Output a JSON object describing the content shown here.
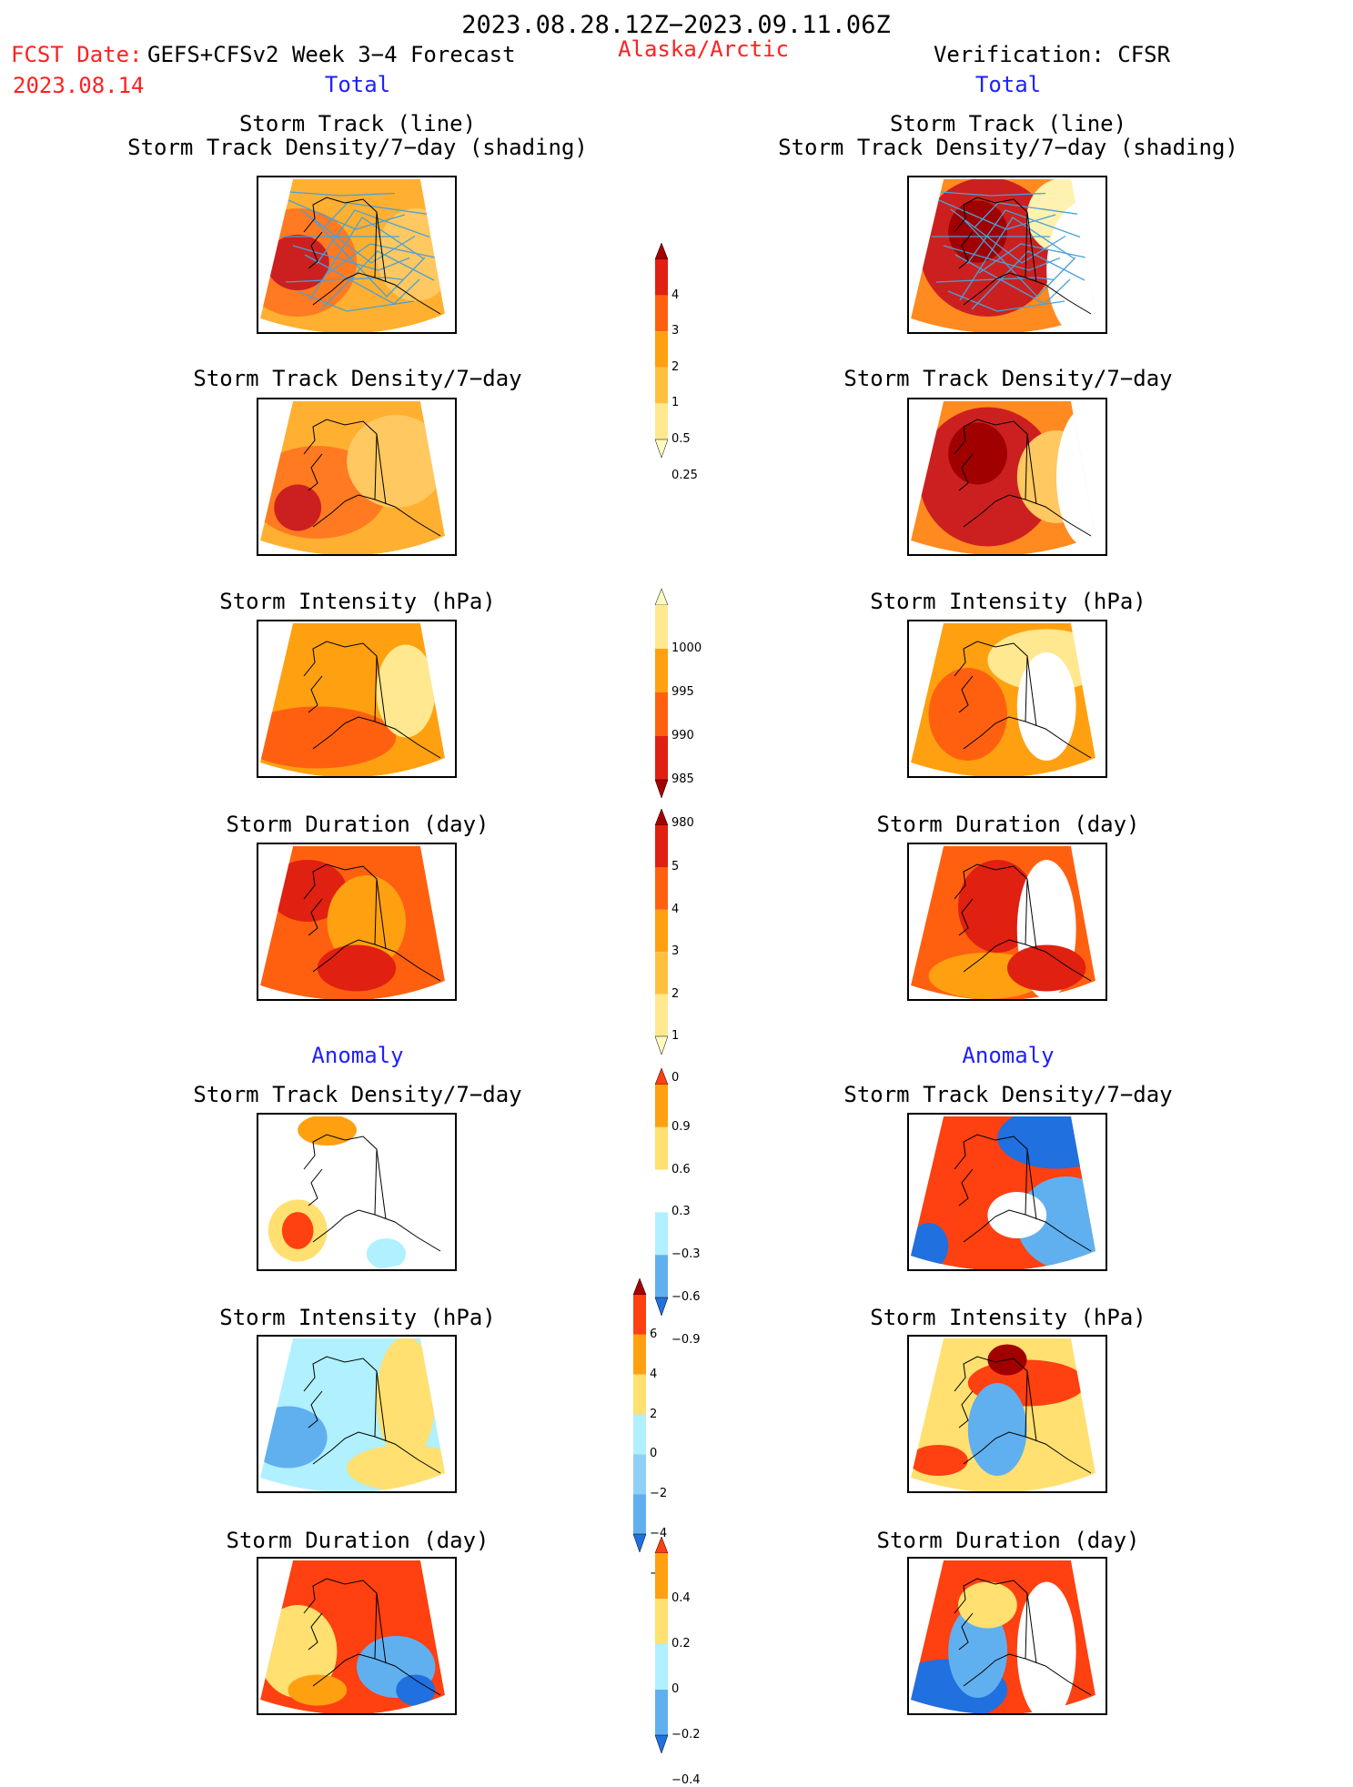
{
  "header": {
    "period": "2023.08.28.12Z−2023.09.11.06Z",
    "fcst_date_label": "FCST Date:",
    "forecast_name": "GEFS+CFSv2 Week 3−4 Forecast",
    "fcst_date": "2023.08.14",
    "region": "Alaska/Arctic",
    "verification": "Verification: CFSR",
    "left_total": "Total",
    "right_total": "Total",
    "left_anomaly": "Anomaly",
    "right_anomaly": "Anomaly"
  },
  "titles": {
    "p1_line1": "Storm Track (line)",
    "p1_line2": "Storm Track Density/7−day (shading)",
    "p2": "Storm Track Density/7−day",
    "p3": "Storm Intensity (hPa)",
    "p4": "Storm Duration (day)",
    "p5": "Storm Track Density/7−day",
    "p6": "Storm Intensity (hPa)",
    "p7": "Storm Duration (day)"
  },
  "colorbars": {
    "density": {
      "ticks": [
        "4",
        "3",
        "2",
        "1",
        "0.5",
        "0.25"
      ],
      "colors": [
        "#a50000",
        "#e02010",
        "#ff6010",
        "#ffa010",
        "#ffc040",
        "#ffe890",
        "#fffcc0"
      ]
    },
    "intensity": {
      "ticks": [
        "1000",
        "995",
        "990",
        "985",
        "980"
      ],
      "colors": [
        "#fffcc0",
        "#ffe890",
        "#ffa010",
        "#ff6010",
        "#e02010",
        "#a50000"
      ]
    },
    "duration": {
      "ticks": [
        "5",
        "4",
        "3",
        "2",
        "1",
        "0"
      ],
      "colors": [
        "#a50000",
        "#e02010",
        "#ff6010",
        "#ffa010",
        "#ffc040",
        "#ffe890",
        "#fffcc0"
      ]
    },
    "anom_density": {
      "ticks": [
        "0.9",
        "0.6",
        "0.3",
        "−0.3",
        "−0.6",
        "−0.9"
      ],
      "colors": [
        "#ff4010",
        "#ffa010",
        "#ffe070",
        "#ffffff",
        "#b0f0ff",
        "#60b0f0",
        "#2070e0"
      ]
    },
    "anom_intensity": {
      "ticks": [
        "6",
        "4",
        "2",
        "0",
        "−2",
        "−4",
        "−6"
      ],
      "colors": [
        "#a50000",
        "#ff4010",
        "#ffa010",
        "#ffe070",
        "#b0f0ff",
        "#90d0f8",
        "#60b0f0",
        "#2070e0"
      ]
    },
    "anom_duration": {
      "ticks": [
        "0.4",
        "0.2",
        "0",
        "−0.2",
        "−0.4"
      ],
      "colors": [
        "#ff4010",
        "#ffa010",
        "#ffe070",
        "#b0f0ff",
        "#60b0f0",
        "#2070e0"
      ]
    }
  },
  "maps": {
    "left_density_lines": {
      "base": "#ffb030",
      "blobs": [
        [
          "#ff7a20",
          0.2,
          0.55,
          0.3,
          0.35
        ],
        [
          "#cc2020",
          0.2,
          0.55,
          0.16,
          0.18
        ],
        [
          "#ffc860",
          0.8,
          0.5,
          0.2,
          0.3
        ]
      ],
      "tracks": true
    },
    "right_density_lines": {
      "base": "#ff8a20",
      "blobs": [
        [
          "#cc2020",
          0.4,
          0.45,
          0.35,
          0.45
        ],
        [
          "#a00000",
          0.35,
          0.35,
          0.15,
          0.2
        ],
        [
          "#fff2b0",
          0.8,
          0.25,
          0.2,
          0.25
        ],
        [
          "#ffffff",
          0.9,
          0.6,
          0.2,
          0.45
        ]
      ],
      "tracks": true
    },
    "left_density": {
      "base": "#ffb030",
      "blobs": [
        [
          "#ff7a20",
          0.3,
          0.6,
          0.35,
          0.3
        ],
        [
          "#cc2020",
          0.2,
          0.7,
          0.12,
          0.15
        ],
        [
          "#ffc860",
          0.7,
          0.4,
          0.25,
          0.3
        ]
      ]
    },
    "right_density": {
      "base": "#ff8a20",
      "blobs": [
        [
          "#cc2020",
          0.4,
          0.5,
          0.35,
          0.45
        ],
        [
          "#a00000",
          0.35,
          0.35,
          0.15,
          0.2
        ],
        [
          "#ffc860",
          0.75,
          0.5,
          0.2,
          0.3
        ],
        [
          "#ffffff",
          0.9,
          0.5,
          0.15,
          0.45
        ]
      ]
    },
    "left_intensity": {
      "base": "#ffa010",
      "blobs": [
        [
          "#ff6010",
          0.3,
          0.75,
          0.4,
          0.2
        ],
        [
          "#ffe890",
          0.75,
          0.45,
          0.15,
          0.3
        ]
      ]
    },
    "right_intensity": {
      "base": "#ffa010",
      "blobs": [
        [
          "#ffe890",
          0.7,
          0.25,
          0.3,
          0.2
        ],
        [
          "#ff6010",
          0.3,
          0.6,
          0.2,
          0.3
        ],
        [
          "#ffffff",
          0.7,
          0.55,
          0.15,
          0.35
        ]
      ]
    },
    "left_duration": {
      "base": "#ff6010",
      "blobs": [
        [
          "#e02010",
          0.25,
          0.3,
          0.2,
          0.2
        ],
        [
          "#ffa010",
          0.55,
          0.5,
          0.2,
          0.3
        ],
        [
          "#e02010",
          0.5,
          0.8,
          0.2,
          0.15
        ]
      ]
    },
    "right_duration": {
      "base": "#ff6010",
      "blobs": [
        [
          "#e02010",
          0.45,
          0.4,
          0.2,
          0.3
        ],
        [
          "#ffa010",
          0.4,
          0.85,
          0.3,
          0.15
        ],
        [
          "#ffffff",
          0.7,
          0.55,
          0.15,
          0.45
        ],
        [
          "#e02010",
          0.7,
          0.8,
          0.2,
          0.15
        ]
      ]
    },
    "left_anom_density": {
      "base": "#ffffff",
      "blobs": [
        [
          "#ffe070",
          0.2,
          0.75,
          0.15,
          0.2
        ],
        [
          "#ff4010",
          0.2,
          0.75,
          0.08,
          0.12
        ],
        [
          "#ffa010",
          0.35,
          0.1,
          0.15,
          0.1
        ],
        [
          "#b0f0ff",
          0.65,
          0.9,
          0.1,
          0.1
        ]
      ]
    },
    "right_anom_density": {
      "base": "#ff4010",
      "blobs": [
        [
          "#2070e0",
          0.75,
          0.15,
          0.3,
          0.2
        ],
        [
          "#60b0f0",
          0.8,
          0.7,
          0.25,
          0.3
        ],
        [
          "#2070e0",
          0.1,
          0.85,
          0.1,
          0.15
        ],
        [
          "#ffffff",
          0.55,
          0.65,
          0.15,
          0.15
        ]
      ]
    },
    "left_anom_intensity": {
      "base": "#b0f0ff",
      "blobs": [
        [
          "#60b0f0",
          0.15,
          0.65,
          0.2,
          0.2
        ],
        [
          "#ffe070",
          0.75,
          0.4,
          0.15,
          0.4
        ],
        [
          "#ffe070",
          0.75,
          0.85,
          0.3,
          0.15
        ]
      ]
    },
    "right_anom_intensity": {
      "base": "#ffe070",
      "blobs": [
        [
          "#ff4010",
          0.6,
          0.3,
          0.3,
          0.15
        ],
        [
          "#a00000",
          0.5,
          0.15,
          0.1,
          0.1
        ],
        [
          "#60b0f0",
          0.45,
          0.6,
          0.15,
          0.3
        ],
        [
          "#ff4010",
          0.15,
          0.8,
          0.15,
          0.1
        ]
      ]
    },
    "left_anom_duration": {
      "base": "#ff4010",
      "blobs": [
        [
          "#ffe070",
          0.2,
          0.6,
          0.2,
          0.3
        ],
        [
          "#60b0f0",
          0.7,
          0.7,
          0.2,
          0.2
        ],
        [
          "#2070e0",
          0.8,
          0.85,
          0.1,
          0.1
        ],
        [
          "#ffa010",
          0.3,
          0.85,
          0.15,
          0.1
        ]
      ]
    },
    "right_anom_duration": {
      "base": "#ff4010",
      "blobs": [
        [
          "#2070e0",
          0.2,
          0.85,
          0.3,
          0.2
        ],
        [
          "#60b0f0",
          0.35,
          0.6,
          0.15,
          0.3
        ],
        [
          "#ffe070",
          0.4,
          0.3,
          0.15,
          0.15
        ],
        [
          "#ffffff",
          0.7,
          0.6,
          0.15,
          0.45
        ]
      ]
    }
  }
}
